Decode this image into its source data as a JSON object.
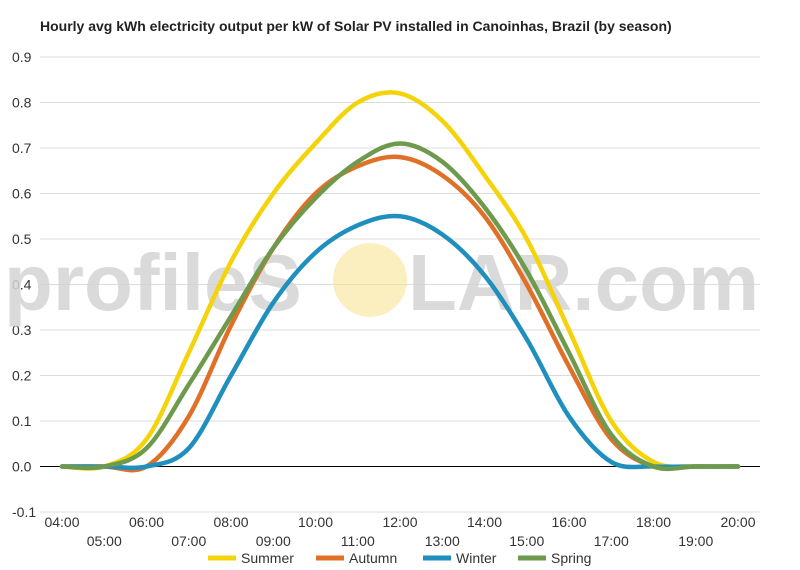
{
  "title": "Hourly avg kWh electricity output per kW of Solar PV installed in Canoinhas, Brazil (by season)",
  "watermark": {
    "left": "profileS",
    "right": "LAR.com"
  },
  "chart_data": {
    "type": "line",
    "x": [
      "04:00",
      "05:00",
      "06:00",
      "07:00",
      "08:00",
      "09:00",
      "10:00",
      "11:00",
      "12:00",
      "13:00",
      "14:00",
      "15:00",
      "16:00",
      "17:00",
      "18:00",
      "19:00",
      "20:00"
    ],
    "yticks": [
      "-0.1",
      "0.0",
      "0.1",
      "0.2",
      "0.3",
      "0.4",
      "0.5",
      "0.6",
      "0.7",
      "0.8",
      "0.9"
    ],
    "ylim": [
      -0.1,
      0.9
    ],
    "grid": true,
    "legend": "bottom",
    "series": [
      {
        "name": "Summer",
        "color": "#f5d30a",
        "values": [
          0.0,
          0.0,
          0.06,
          0.25,
          0.45,
          0.6,
          0.71,
          0.8,
          0.82,
          0.76,
          0.64,
          0.5,
          0.3,
          0.1,
          0.01,
          0.0,
          0.0
        ]
      },
      {
        "name": "Autumn",
        "color": "#e07027",
        "values": [
          0.0,
          0.0,
          0.0,
          0.11,
          0.31,
          0.48,
          0.6,
          0.66,
          0.68,
          0.64,
          0.55,
          0.4,
          0.22,
          0.06,
          0.0,
          0.0,
          0.0
        ]
      },
      {
        "name": "Winter",
        "color": "#1f8fbd",
        "values": [
          0.0,
          0.0,
          0.0,
          0.04,
          0.2,
          0.36,
          0.47,
          0.53,
          0.55,
          0.51,
          0.42,
          0.28,
          0.11,
          0.01,
          0.0,
          0.0,
          0.0
        ]
      },
      {
        "name": "Spring",
        "color": "#6e9a4e",
        "values": [
          0.0,
          0.0,
          0.04,
          0.18,
          0.33,
          0.48,
          0.59,
          0.67,
          0.71,
          0.67,
          0.57,
          0.43,
          0.25,
          0.07,
          0.0,
          0.0,
          0.0
        ]
      }
    ]
  }
}
